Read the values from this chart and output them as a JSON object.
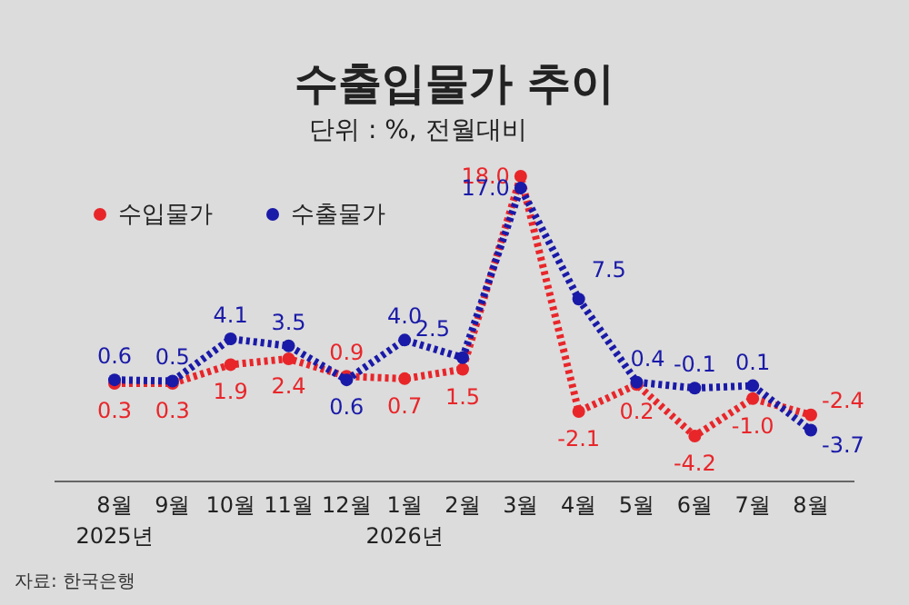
{
  "chart_data": {
    "type": "line",
    "title": "수출입물가 추이",
    "subtitle": "단위 : %, 전월대비",
    "categories": [
      "8월\n2025년",
      "9월",
      "10월",
      "11월",
      "12월",
      "1월\n2026년",
      "2월",
      "3월",
      "4월",
      "5월",
      "6월",
      "7월",
      "8월"
    ],
    "series": [
      {
        "name": "수입물가",
        "color": "#e8262a",
        "values": [
          0.3,
          0.3,
          1.9,
          2.4,
          0.9,
          0.7,
          1.5,
          18.0,
          -2.1,
          0.2,
          -4.2,
          -1.0,
          -2.4
        ],
        "value_labels": [
          "0.3",
          "0.3",
          "1.9",
          "2.4",
          "0.9",
          "0.7",
          "1.5",
          "18.0",
          "-2.1",
          "0.2",
          "-4.2",
          "-1.0",
          "-2.4"
        ]
      },
      {
        "name": "수출물가",
        "color": "#1a1aa8",
        "values": [
          0.6,
          0.5,
          4.1,
          3.5,
          0.6,
          4.0,
          2.5,
          17.0,
          7.5,
          0.4,
          -0.1,
          0.1,
          -3.7
        ],
        "value_labels": [
          "0.6",
          "0.5",
          "4.1",
          "3.5",
          "0.6",
          "4.0",
          "2.5",
          "17.0",
          "7.5",
          "0.4",
          "-0.1",
          "0.1",
          "-3.7"
        ]
      }
    ],
    "legend": "top left",
    "marker": "circle",
    "line_style": "dotted",
    "grid": false,
    "annotations": [
      "자료: 한국은행"
    ]
  }
}
